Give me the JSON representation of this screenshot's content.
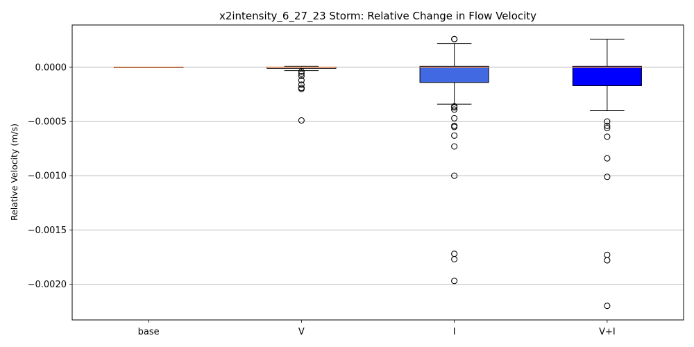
{
  "chart_data": {
    "type": "box",
    "title": "x2intensity_6_27_23 Storm: Relative Change in Flow Velocity",
    "xlabel": "",
    "ylabel": "Relative Velocity (m/s)",
    "ylim": [
      -0.00233,
      0.00039
    ],
    "yticks": [
      0.0,
      -0.0005,
      -0.001,
      -0.0015,
      -0.002
    ],
    "ytick_labels": [
      "0.0000",
      "−0.0005",
      "−0.0010",
      "−0.0015",
      "−0.0020"
    ],
    "grid": "horizontal",
    "median_color": "#dd8452",
    "series": [
      {
        "name": "base",
        "fill": "#ffffff",
        "whisker_low": 0.0,
        "q1": 0.0,
        "median": 0.0,
        "q3": 0.0,
        "whisker_high": 0.0,
        "outliers": []
      },
      {
        "name": "V",
        "fill": "#ffffff",
        "whisker_low": -3e-05,
        "q1": -1e-05,
        "median": 0.0,
        "q3": 0.0,
        "whisker_high": 1e-05,
        "outliers": [
          -4e-05,
          -6e-05,
          -8e-05,
          -0.00012,
          -0.00016,
          -0.00019,
          -0.0002,
          -0.00049
        ]
      },
      {
        "name": "I",
        "fill": "#4169e1",
        "whisker_low": -0.00034,
        "q1": -0.00014,
        "median": 0.0,
        "q3": 1e-05,
        "whisker_high": 0.00022,
        "outliers": [
          0.00026,
          0.00026,
          -0.00036,
          -0.00037,
          -0.00039,
          -0.00047,
          -0.00054,
          -0.00055,
          -0.00063,
          -0.00073,
          -0.001,
          -0.00172,
          -0.00177,
          -0.00197
        ]
      },
      {
        "name": "V+I",
        "fill": "#0000ff",
        "whisker_low": -0.0004,
        "q1": -0.00017,
        "median": 0.0,
        "q3": 1e-05,
        "whisker_high": 0.00026,
        "outliers": [
          -0.0005,
          -0.00054,
          -0.00056,
          -0.00064,
          -0.00084,
          -0.00101,
          -0.00173,
          -0.00178,
          -0.0022
        ]
      }
    ]
  }
}
